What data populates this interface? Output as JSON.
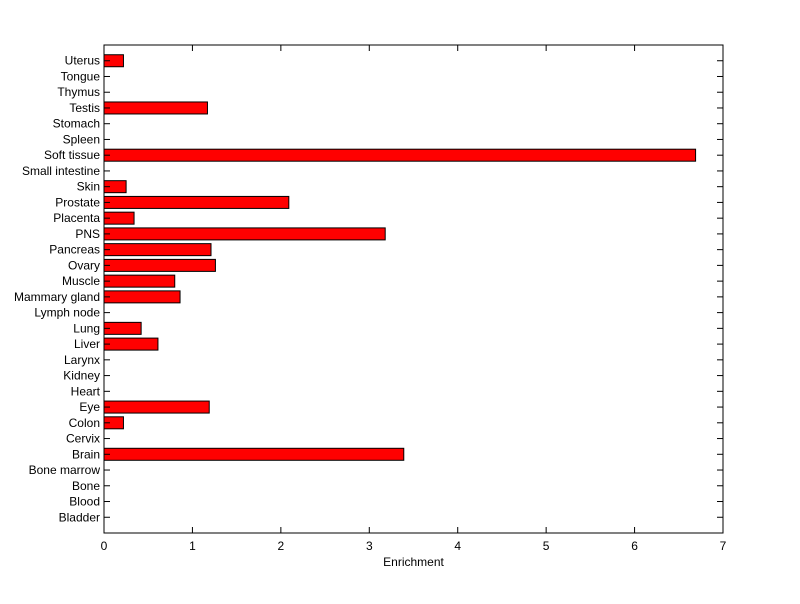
{
  "chart_data": {
    "type": "bar",
    "orientation": "horizontal",
    "title": "",
    "xlabel": "Enrichment",
    "ylabel": "",
    "xlim": [
      0,
      7
    ],
    "xticks": [
      "0",
      "1",
      "2",
      "3",
      "4",
      "5",
      "6",
      "7"
    ],
    "grid": false,
    "bar_color": "#ff0000",
    "bar_edge_color": "#000000",
    "categories": [
      "Bladder",
      "Blood",
      "Bone",
      "Bone marrow",
      "Brain",
      "Cervix",
      "Colon",
      "Eye",
      "Heart",
      "Kidney",
      "Larynx",
      "Liver",
      "Lung",
      "Lymph node",
      "Mammary gland",
      "Muscle",
      "Ovary",
      "Pancreas",
      "PNS",
      "Placenta",
      "Prostate",
      "Skin",
      "Small intestine",
      "Soft tissue",
      "Spleen",
      "Stomach",
      "Testis",
      "Thymus",
      "Tongue",
      "Uterus"
    ],
    "values": [
      0,
      0,
      0,
      0,
      3.39,
      0,
      0.22,
      1.19,
      0,
      0,
      0,
      0.61,
      0.42,
      0,
      0.86,
      0.8,
      1.26,
      1.21,
      3.18,
      0.34,
      2.09,
      0.25,
      0,
      6.69,
      0,
      0,
      1.17,
      0,
      0,
      0.22
    ]
  }
}
